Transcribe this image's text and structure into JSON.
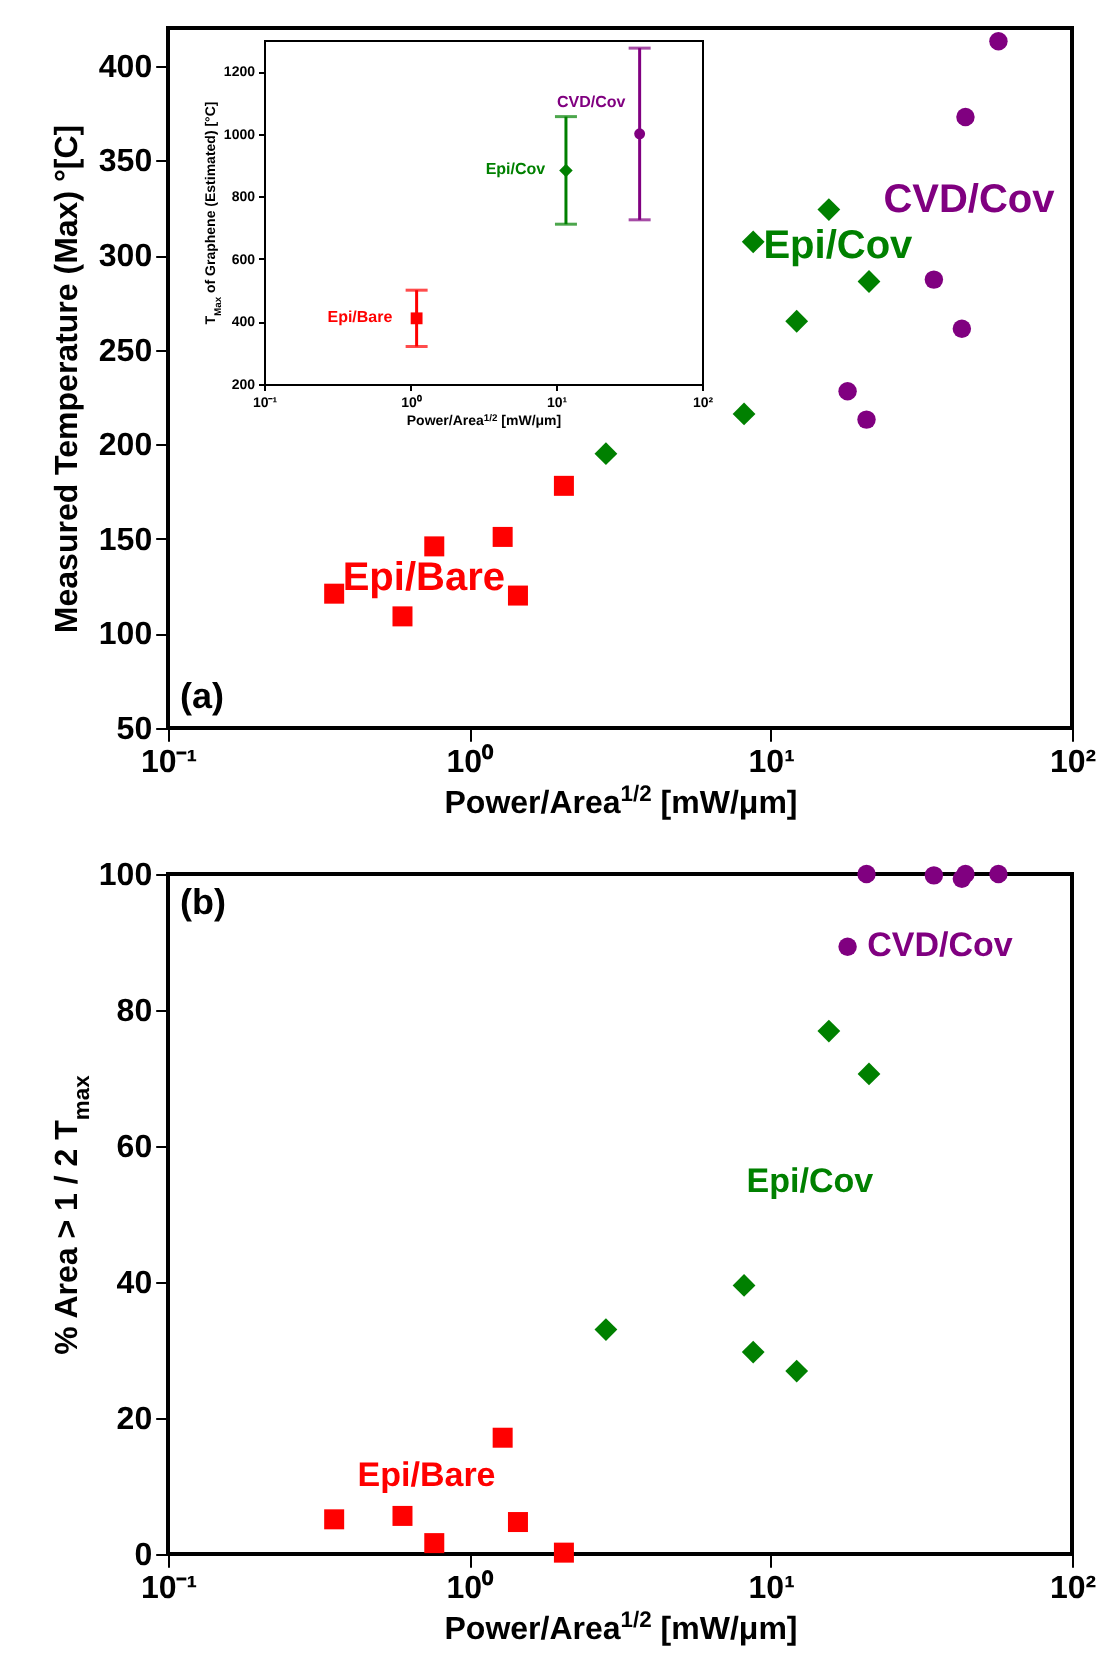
{
  "chart_data": [
    {
      "type": "scatter",
      "xlabel": "Power/Area$^{1/2}$ [mW/μm]",
      "ylabel": "Measured Temperature (Max) °[C]",
      "xlim": [
        0.1,
        100
      ],
      "ylim": [
        50,
        420
      ],
      "log": "x",
      "grid": false,
      "xticks": [
        {
          "value": 0.1,
          "label": "10⁻¹"
        },
        {
          "value": 1,
          "label": "10⁰"
        },
        {
          "value": 10,
          "label": "10¹"
        },
        {
          "value": 100,
          "label": "10²"
        }
      ],
      "yticks": [
        50,
        100,
        150,
        200,
        250,
        300,
        350,
        400
      ],
      "series": [
        {
          "name": "Epi/Bare",
          "color": "#ff0000",
          "marker": "square",
          "x": [
            0.356,
            0.6,
            0.765,
            1.29,
            1.45,
            2.06
          ],
          "values": [
            121,
            109,
            146,
            151,
            120,
            178
          ]
        },
        {
          "name": "Epi/Cov",
          "color": "#008000",
          "marker": "diamond",
          "x": [
            2.84,
            8.16,
            8.75,
            12.2,
            15.6,
            21.2
          ],
          "values": [
            195,
            216,
            307,
            265,
            324,
            286
          ]
        },
        {
          "name": "CVD/Cov",
          "color": "#800080",
          "marker": "circle",
          "x": [
            18.0,
            20.8,
            34.8,
            43.1,
            44.3,
            57.0
          ],
          "values": [
            228,
            213,
            287,
            261,
            373,
            413
          ]
        }
      ],
      "annotations": [
        "(a)"
      ]
    },
    {
      "type": "scatter",
      "xlabel": "Power/Area$^{1/2}$ [mW/μm]",
      "ylabel": "T$_{Max}$ of Graphene (Estimated) [°C]",
      "xlim": [
        0.1,
        100
      ],
      "ylim": [
        200,
        1300
      ],
      "log": "x",
      "grid": false,
      "xticks": [
        {
          "value": 0.1,
          "label": "10⁻¹"
        },
        {
          "value": 1,
          "label": "10⁰"
        },
        {
          "value": 10,
          "label": "10¹"
        },
        {
          "value": 100,
          "label": "10²"
        }
      ],
      "yticks": [
        200,
        400,
        600,
        800,
        1000,
        1200
      ],
      "series": [
        {
          "name": "Epi/Bare",
          "color": "#ff0000",
          "marker": "square",
          "x": [
            1.11
          ],
          "values": [
            410
          ],
          "errors": [
            [
              320,
              500
            ]
          ]
        },
        {
          "name": "Epi/Cov",
          "color": "#008000",
          "marker": "diamond",
          "x": [
            11.7
          ],
          "values": [
            883
          ],
          "errors": [
            [
              711,
              1055
            ]
          ]
        },
        {
          "name": "CVD/Cov",
          "color": "#800080",
          "marker": "circle",
          "x": [
            37.4
          ],
          "values": [
            1000
          ],
          "errors": [
            [
              725,
              1274
            ]
          ]
        }
      ]
    },
    {
      "type": "scatter",
      "xlabel": "Power/Area$^{1/2}$ [mW/μm]",
      "ylabel": "% Area > 1 / 2 T$_{max}$",
      "xlim": [
        0.1,
        100
      ],
      "ylim": [
        0,
        100
      ],
      "log": "x",
      "grid": false,
      "xticks": [
        {
          "value": 0.1,
          "label": "10⁻¹"
        },
        {
          "value": 1,
          "label": "10⁰"
        },
        {
          "value": 10,
          "label": "10¹"
        },
        {
          "value": 100,
          "label": "10²"
        }
      ],
      "yticks": [
        0,
        20,
        40,
        60,
        80,
        100
      ],
      "series": [
        {
          "name": "Epi/Bare",
          "color": "#ff0000",
          "marker": "square",
          "x": [
            0.356,
            0.6,
            0.765,
            1.29,
            1.45,
            2.06
          ],
          "values": [
            5.1,
            5.6,
            1.6,
            17.1,
            4.7,
            0.2
          ]
        },
        {
          "name": "Epi/Cov",
          "color": "#008000",
          "marker": "diamond",
          "x": [
            2.84,
            8.16,
            8.75,
            12.2,
            15.6,
            21.2
          ],
          "values": [
            33.0,
            39.5,
            29.7,
            26.9,
            76.9,
            70.6
          ]
        },
        {
          "name": "CVD/Cov",
          "color": "#800080",
          "marker": "circle",
          "x": [
            18.0,
            20.8,
            34.8,
            43.1,
            44.3,
            57.0
          ],
          "values": [
            89.3,
            100,
            99.8,
            99.3,
            100,
            100
          ]
        }
      ],
      "annotations": [
        "(b)"
      ]
    }
  ]
}
